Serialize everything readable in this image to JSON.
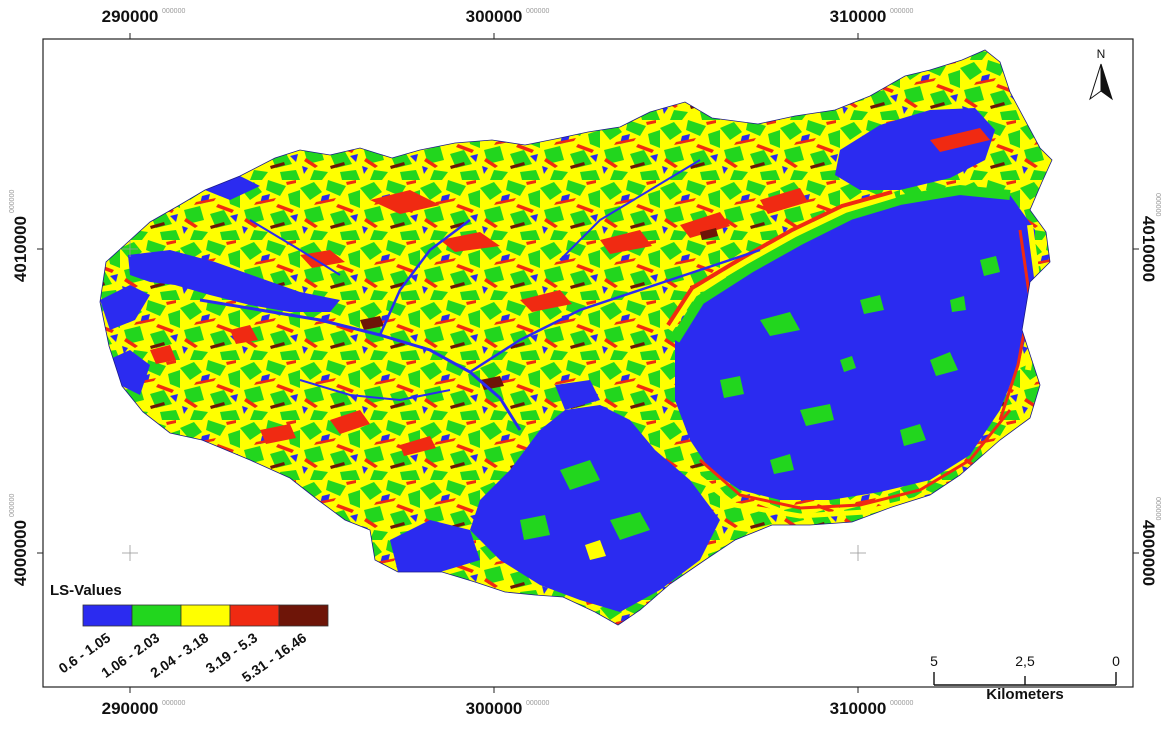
{
  "map": {
    "x_coords": [
      {
        "label": "290000",
        "suffix": "000000"
      },
      {
        "label": "300000",
        "suffix": "000000"
      },
      {
        "label": "310000",
        "suffix": "000000"
      }
    ],
    "y_coords": [
      {
        "label": "4010000",
        "suffix": "000000"
      },
      {
        "label": "4000000",
        "suffix": "000000"
      }
    ],
    "legend": {
      "title": "LS-Values",
      "classes": [
        {
          "label": "0.6 - 1.05",
          "color": "#2b2bf0"
        },
        {
          "label": "1.06 - 2.03",
          "color": "#22d61e"
        },
        {
          "label": "2.04 - 3.18",
          "color": "#ffff00"
        },
        {
          "label": "3.19 - 5.3",
          "color": "#f02a12"
        },
        {
          "label": "5.31 - 16.46",
          "color": "#6e1508"
        }
      ]
    },
    "scale_bar": {
      "ticks": [
        "5",
        "2,5",
        "0"
      ],
      "unit": "Kilometers"
    },
    "north_arrow": {
      "letter": "N",
      "icon": "north-arrow-icon"
    }
  }
}
